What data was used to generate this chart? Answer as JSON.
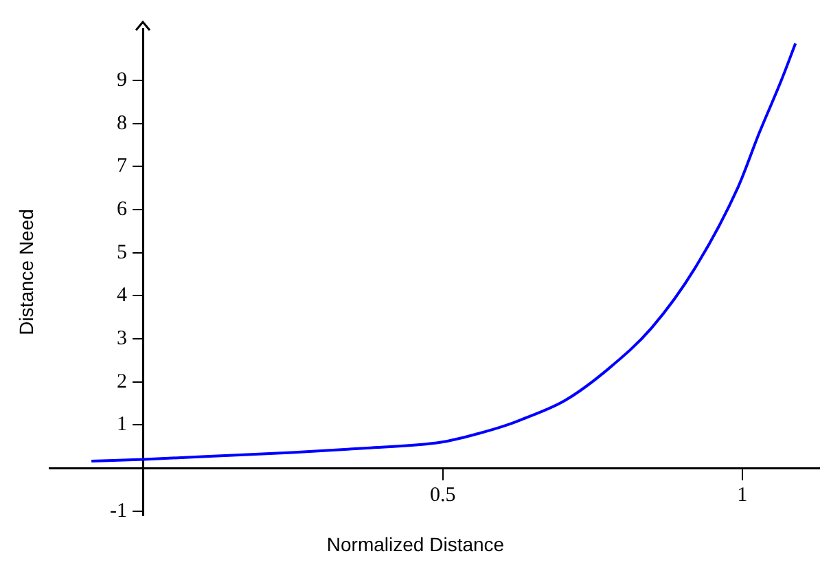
{
  "chart_data": {
    "type": "line",
    "xlabel": "Normalized Distance",
    "ylabel": "Distance Need",
    "x": [
      -0.087,
      0,
      0.104,
      0.248,
      0.379,
      0.497,
      0.559,
      0.603,
      0.632,
      0.704,
      0.777,
      0.849,
      0.921,
      0.993,
      1.029,
      1.065,
      1.089
    ],
    "series": [
      {
        "color": "#0000ff",
        "values": [
          0.16,
          0.2,
          0.27,
          0.36,
          0.47,
          0.6,
          0.8,
          0.98,
          1.13,
          1.57,
          2.31,
          3.26,
          4.64,
          6.52,
          7.8,
          8.99,
          9.86
        ]
      }
    ],
    "xlim": [
      -0.156,
      1.13
    ],
    "ylim": [
      -1.1,
      10.2
    ],
    "xticks": [
      0.5,
      1
    ],
    "yticks": [
      -1,
      1,
      2,
      3,
      4,
      5,
      6,
      7,
      8,
      9
    ],
    "grid": false,
    "legend": false,
    "marker": "none",
    "line_style": "solid"
  }
}
